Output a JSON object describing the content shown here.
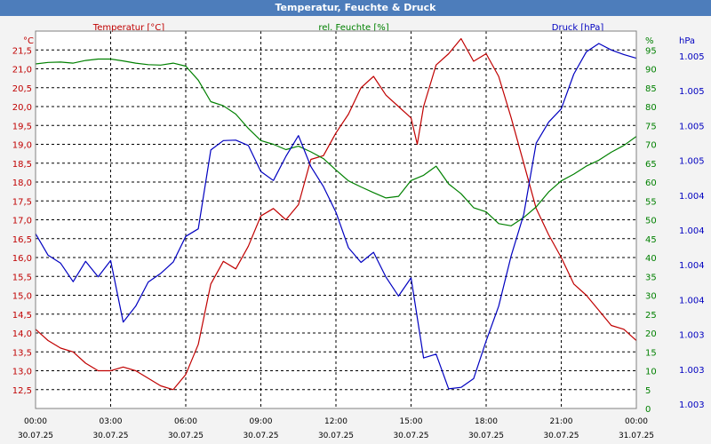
{
  "window": {
    "title": "Temperatur, Feuchte & Druck"
  },
  "colors": {
    "temperature": "#c00000",
    "humidity": "#008000",
    "pressure": "#0000c0",
    "grid": "#000000",
    "text": "#000000",
    "title_bg": "#4d7dbb"
  },
  "chart_data": {
    "type": "line",
    "title": "Temperatur, Feuchte & Druck",
    "grid": true,
    "x_ticks": [
      {
        "time": "00:00",
        "date": "30.07.25"
      },
      {
        "time": "03:00",
        "date": "30.07.25"
      },
      {
        "time": "06:00",
        "date": "30.07.25"
      },
      {
        "time": "09:00",
        "date": "30.07.25"
      },
      {
        "time": "12:00",
        "date": "30.07.25"
      },
      {
        "time": "15:00",
        "date": "30.07.25"
      },
      {
        "time": "18:00",
        "date": "30.07.25"
      },
      {
        "time": "21:00",
        "date": "30.07.25"
      },
      {
        "time": "00:00",
        "date": "31.07.25"
      }
    ],
    "xlim": [
      "30.07.25 00:00",
      "31.07.25 00:00"
    ],
    "axes": {
      "temperature": {
        "label": "Temperatur [°C]",
        "unit": "°C",
        "side": "left",
        "range": [
          12.0,
          22.0
        ],
        "ticks": [
          "12,5",
          "13,0",
          "13,5",
          "14,0",
          "14,5",
          "15,0",
          "15,5",
          "16,0",
          "16,5",
          "17,0",
          "17,5",
          "18,0",
          "18,5",
          "19,0",
          "19,5",
          "20,0",
          "20,5",
          "21,0",
          "21,5"
        ]
      },
      "humidity": {
        "label": "rel. Feuchte [%]",
        "unit": "%",
        "side": "right",
        "range": [
          0,
          100
        ],
        "ticks": [
          "0",
          "5",
          "10",
          "15",
          "20",
          "25",
          "30",
          "35",
          "40",
          "45",
          "50",
          "55",
          "60",
          "65",
          "70",
          "75",
          "80",
          "85",
          "90",
          "95"
        ]
      },
      "pressure": {
        "label": "Druck [hPa]",
        "unit": "hPa",
        "side": "right",
        "ticks": [
          "1.003",
          "1.003",
          "1.003",
          "1.004",
          "1.004",
          "1.004",
          "1.004",
          "1.005",
          "1.005",
          "1.005",
          "1.005"
        ]
      }
    },
    "series": [
      {
        "name": "Temperatur [°C]",
        "axis": "temperature",
        "x_hours": [
          0,
          0.5,
          1,
          1.5,
          2,
          2.5,
          3,
          3.5,
          4,
          4.5,
          5,
          5.5,
          6,
          6.5,
          7,
          7.5,
          8,
          8.5,
          9,
          9.5,
          10,
          10.5,
          11,
          11.5,
          12,
          12.5,
          13,
          13.5,
          14,
          14.5,
          15,
          15.25,
          15.5,
          16,
          16.5,
          17,
          17.5,
          18,
          18.5,
          19,
          19.5,
          20,
          20.5,
          21,
          21.5,
          22,
          22.5,
          23,
          23.5,
          24
        ],
        "values": [
          14.1,
          13.8,
          13.6,
          13.5,
          13.2,
          13.0,
          13.0,
          13.1,
          13.0,
          12.8,
          12.6,
          12.5,
          12.9,
          13.7,
          15.3,
          15.9,
          15.7,
          16.3,
          17.1,
          17.3,
          17.0,
          17.4,
          18.6,
          18.7,
          19.3,
          19.8,
          20.5,
          20.8,
          20.3,
          20.0,
          19.7,
          19.0,
          20.0,
          21.1,
          21.4,
          21.8,
          21.2,
          21.4,
          20.8,
          19.7,
          18.5,
          17.3,
          16.6,
          16.0,
          15.3,
          15.0,
          14.6,
          14.2,
          14.1,
          13.8
        ]
      },
      {
        "name": "rel. Feuchte [%]",
        "axis": "humidity",
        "x_hours": [
          0,
          0.5,
          1,
          1.5,
          2,
          2.5,
          3,
          3.5,
          4,
          4.5,
          5,
          5.5,
          6,
          6.5,
          7,
          7.5,
          8,
          8.5,
          9,
          9.5,
          10,
          10.5,
          11,
          11.5,
          12,
          12.5,
          13,
          13.5,
          14,
          14.5,
          15,
          15.5,
          16,
          16.5,
          17,
          17.5,
          18,
          18.5,
          19,
          19.5,
          20,
          20.5,
          21,
          21.5,
          22,
          22.5,
          23,
          23.5,
          24
        ],
        "values": [
          91.3,
          91.7,
          91.8,
          91.5,
          92.2,
          92.6,
          92.6,
          92.1,
          91.5,
          91.1,
          91.0,
          91.5,
          90.7,
          87.0,
          81.3,
          80.2,
          78.0,
          74.2,
          71.0,
          70.0,
          68.6,
          69.5,
          68.0,
          66.2,
          63.2,
          60.3,
          58.7,
          57.2,
          55.8,
          56.2,
          60.4,
          61.8,
          64.2,
          59.5,
          56.9,
          53.2,
          52.1,
          49.0,
          48.4,
          50.6,
          53.4,
          57.4,
          60.3,
          62.1,
          64.2,
          65.8,
          67.9,
          69.7,
          72.1
        ]
      },
      {
        "name": "Druck [hPa]",
        "axis": "pressure",
        "x_hours": [
          0,
          0.5,
          1,
          1.5,
          2,
          2.5,
          3,
          3.5,
          4,
          4.5,
          5,
          5.5,
          6,
          6.5,
          7,
          7.5,
          8,
          8.5,
          9,
          9.5,
          10,
          10.5,
          11,
          11.5,
          12,
          12.5,
          13,
          13.5,
          14,
          14.5,
          15,
          15.5,
          16,
          16.5,
          17,
          17.5,
          18,
          18.5,
          19,
          19.5,
          20,
          20.5,
          21,
          21.5,
          22,
          22.5,
          23,
          23.5,
          24
        ],
        "values": [
          46.3,
          40.6,
          38.5,
          33.6,
          39.0,
          34.9,
          39.2,
          22.9,
          27.1,
          33.5,
          35.8,
          38.8,
          45.6,
          47.6,
          68.5,
          71.0,
          71.1,
          69.7,
          62.8,
          60.4,
          66.8,
          72.3,
          64.1,
          58.8,
          52.0,
          42.6,
          38.7,
          41.4,
          34.8,
          29.8,
          34.6,
          13.4,
          14.4,
          5.2,
          5.6,
          7.9,
          17.9,
          27.1,
          40.5,
          51.4,
          70.3,
          75.9,
          79.4,
          88.6,
          94.5,
          96.7,
          95.0,
          93.8,
          92.8
        ]
      }
    ]
  }
}
